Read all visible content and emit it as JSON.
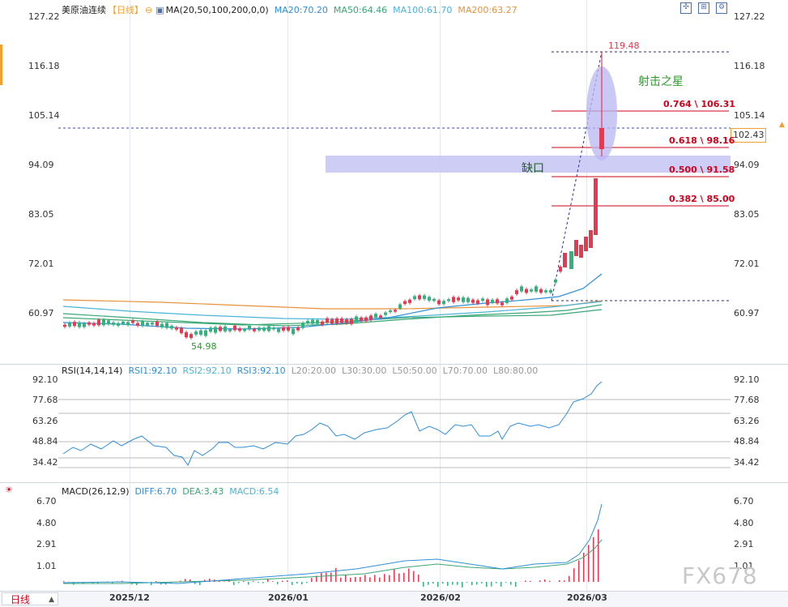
{
  "main": {
    "symbol": "美原油连续",
    "period": "【日线】",
    "ma_label": "MA(20,50,100,200,0,0)",
    "ma_values": [
      {
        "label": "MA20:70.20",
        "color": "#2f8fd8"
      },
      {
        "label": "MA50:64.46",
        "color": "#3aa776"
      },
      {
        "label": "MA100:61.70",
        "color": "#4bb3d8"
      },
      {
        "label": "MA200:63.27",
        "color": "#e8923c"
      }
    ],
    "y_ticks": [
      "127.22",
      "116.18",
      "105.14",
      "94.09",
      "83.05",
      "72.01",
      "60.97"
    ],
    "last_price": "102.43",
    "high_label": "119.48",
    "low_label": "54.98",
    "annotation": "射击之星",
    "gap_label": "缺口",
    "fib_levels": [
      {
        "ratio": "0.764",
        "price": "106.31",
        "label": "0.764 \\ 106.31"
      },
      {
        "ratio": "0.618",
        "price": "98.16",
        "label": "0.618 \\ 98.16"
      },
      {
        "ratio": "0.500",
        "price": "91.58",
        "label": "0.500 \\ 91.58"
      },
      {
        "ratio": "0.382",
        "price": "85.00",
        "label": "0.382 \\ 85.00"
      }
    ]
  },
  "rsi": {
    "label": "RSI(14,14,14)",
    "values": [
      {
        "label": "RSI1:92.10",
        "color": "#2f8fd8"
      },
      {
        "label": "RSI2:92.10",
        "color": "#4bb3d8"
      },
      {
        "label": "RSI3:92.10",
        "color": "#2f8fd8"
      },
      {
        "label": "L20:20.00",
        "color": "#999999"
      },
      {
        "label": "L30:30.00",
        "color": "#999999"
      },
      {
        "label": "L50:50.00",
        "color": "#999999"
      },
      {
        "label": "L70:70.00",
        "color": "#999999"
      },
      {
        "label": "L80:80.00",
        "color": "#999999"
      }
    ],
    "y_ticks": [
      "92.10",
      "77.68",
      "63.26",
      "48.84",
      "34.42"
    ]
  },
  "macd": {
    "label": "MACD(26,12,9)",
    "values": [
      {
        "label": "DIFF:6.70",
        "color": "#2f8fd8"
      },
      {
        "label": "DEA:3.43",
        "color": "#3aa776"
      },
      {
        "label": "MACD:6.54",
        "color": "#4bb3d8"
      }
    ],
    "y_ticks": [
      "6.70",
      "4.80",
      "2.91",
      "1.01"
    ]
  },
  "x_axis": [
    "2025/12",
    "2026/01",
    "2026/02",
    "2026/03"
  ],
  "bottom_tab": "日线",
  "watermark": "FX678",
  "colors": {
    "up": "#e8384f",
    "down": "#33b27c",
    "fib": "#d0021b",
    "accent": "#f0a030"
  },
  "icons": [
    "indicator-icon",
    "zoom-icon",
    "expand-icon",
    "settings-icon",
    "close-icon",
    "sun-icon",
    "tab-arrow-icon"
  ]
}
